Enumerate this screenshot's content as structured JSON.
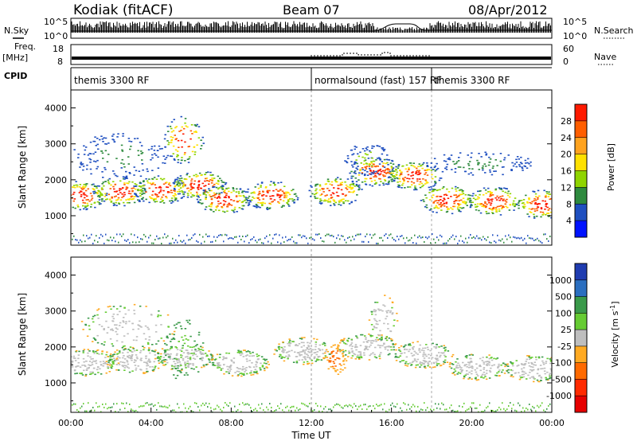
{
  "header": {
    "radar": "Kodiak (fitACF)",
    "beam": "Beam 07",
    "date": "08/Apr/2012"
  },
  "summary_panels": {
    "nsky_label": "N.Sky",
    "nsky_ticks": [
      "10^5",
      "10^0"
    ],
    "nsearch_label": "N.Search",
    "nsearch_ticks": [
      "10^5",
      "10^0"
    ],
    "freq_label_1": "Freq.",
    "freq_label_2": "[MHz]",
    "freq_ticks": [
      "18",
      "8"
    ],
    "nave_label": "Nave",
    "nave_ticks": [
      "60",
      "0"
    ],
    "cpid_label": "CPID",
    "cpid_segments": [
      {
        "label": "themis 3300 RF",
        "start_hour": 0
      },
      {
        "label": "normalsound (fast) 157 RF",
        "start_hour": 12
      },
      {
        "label": "themis 3300 RF",
        "start_hour": 18
      }
    ]
  },
  "chart_data": [
    {
      "type": "heatmap",
      "name": "power",
      "ylabel": "Slant Range [km]",
      "yticks": [
        1000,
        2000,
        3000,
        4000
      ],
      "ylim": [
        180,
        4500
      ],
      "xlim_hours": [
        0,
        24
      ],
      "colorbar_label": "Power [dB]",
      "colorbar_ticks": [
        "28",
        "24",
        "20",
        "16",
        "12",
        "8",
        "4"
      ],
      "colorbar_colors": [
        "#ff1a00",
        "#ff5e00",
        "#ffa31f",
        "#ffe100",
        "#8fd400",
        "#2e8a3e",
        "#1f4fc0",
        "#0012ff"
      ]
    },
    {
      "type": "heatmap",
      "name": "velocity",
      "ylabel": "Slant Range [km]",
      "yticks": [
        1000,
        2000,
        3000,
        4000
      ],
      "ylim": [
        180,
        4500
      ],
      "xlim_hours": [
        0,
        24
      ],
      "colorbar_label": "Velocity [m s",
      "colorbar_label_sup": "-1",
      "colorbar_ticks": [
        "1000",
        "500",
        "100",
        "25",
        "-25",
        "-100",
        "-500",
        "-1000"
      ],
      "colorbar_colors": [
        "#1f3cb0",
        "#2b6fc0",
        "#3a9a4a",
        "#66cc33",
        "#bebebe",
        "#ffaa22",
        "#ff6a00",
        "#ff2a00",
        "#e60000"
      ]
    }
  ],
  "xaxis": {
    "label": "Time UT",
    "ticks": [
      "00:00",
      "04:00",
      "08:00",
      "12:00",
      "16:00",
      "20:00",
      "00:00"
    ]
  }
}
